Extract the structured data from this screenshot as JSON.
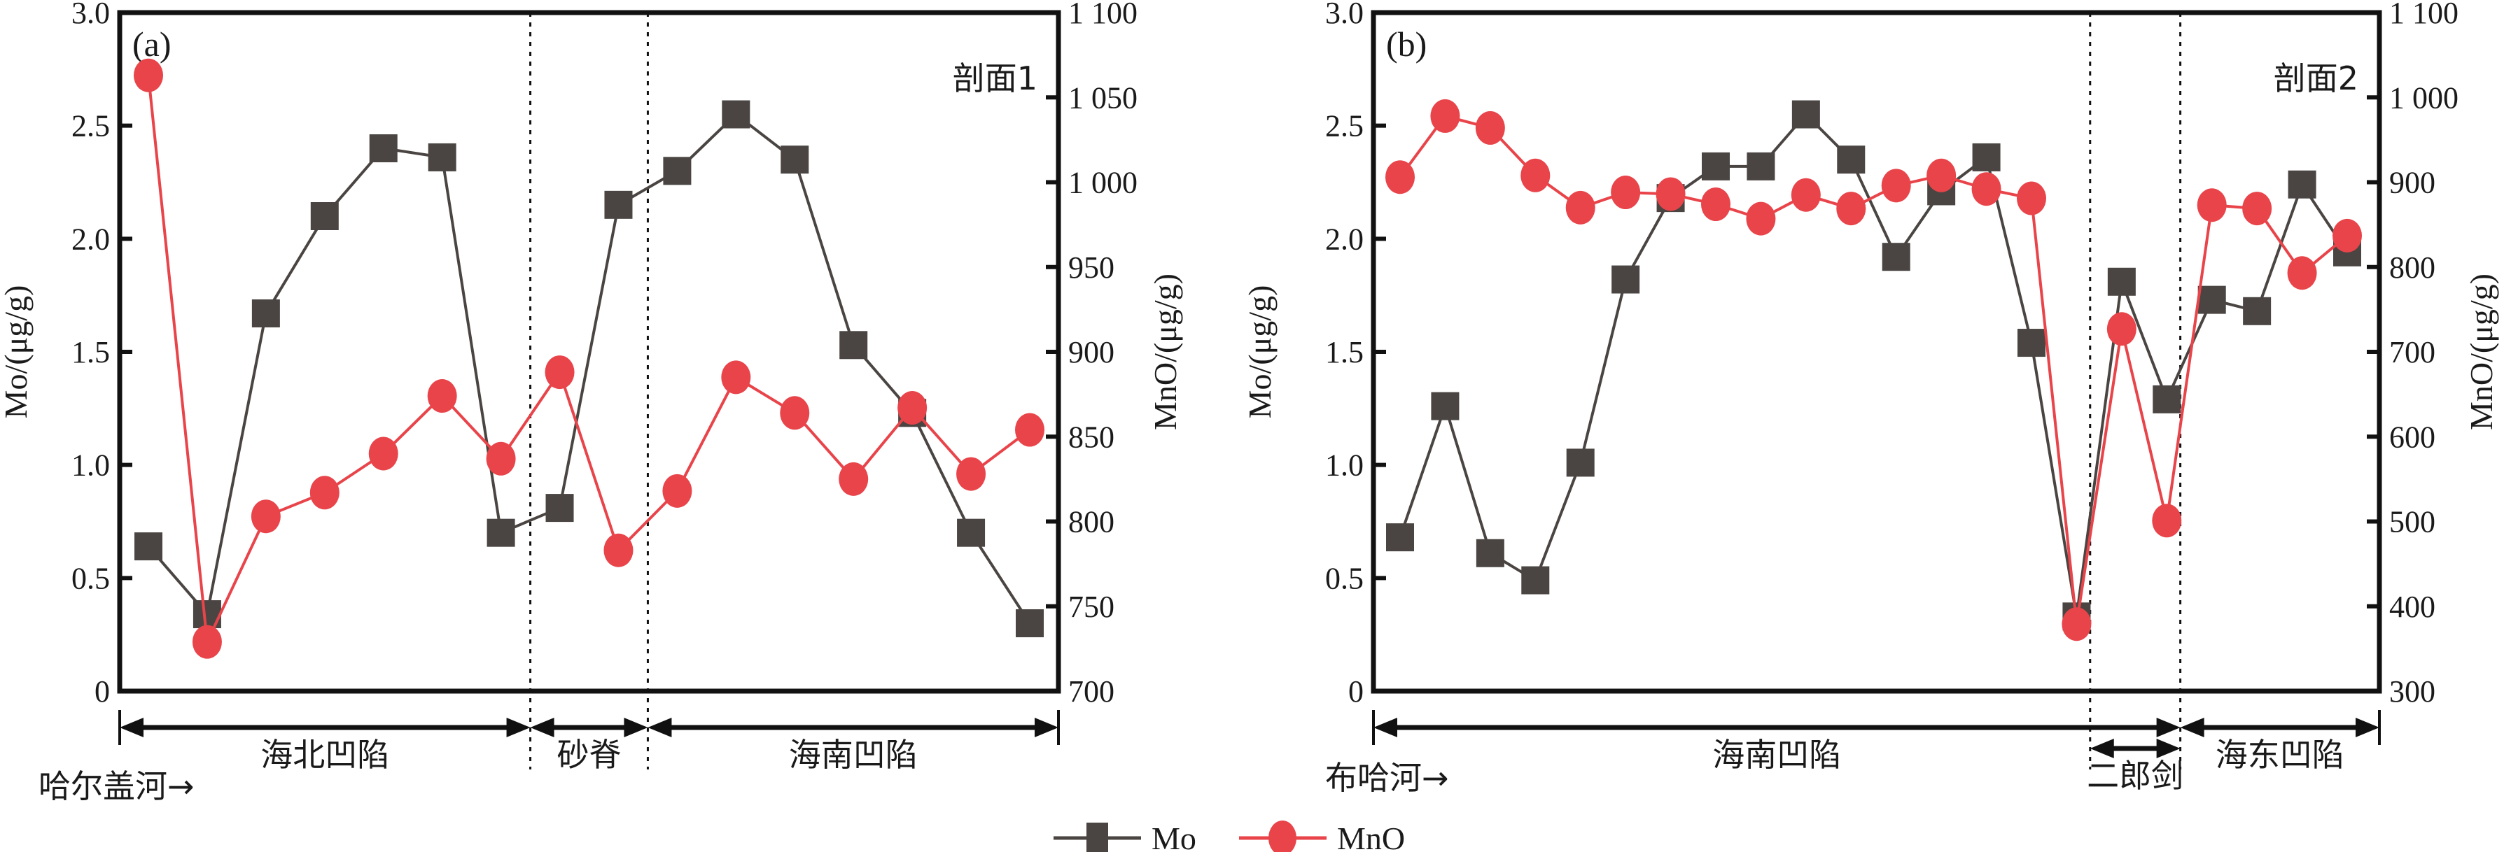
{
  "chart_data": [
    {
      "type": "line",
      "panel_label": "(a)",
      "section_title": "剖面1",
      "ylabel": "Mo/(μg/g)",
      "y2label": "MnO/(μg/g)",
      "ylim": [
        0,
        3.0
      ],
      "y2lim": [
        700,
        1100
      ],
      "yticks": [
        "0",
        "0.5",
        "1.0",
        "1.5",
        "2.0",
        "2.5",
        "3.0"
      ],
      "y2ticks": [
        "700",
        "750",
        "800",
        "850",
        "900",
        "950",
        "1 000",
        "1 050",
        "1 100"
      ],
      "y_tick_values": [
        0,
        0.5,
        1.0,
        1.5,
        2.0,
        2.5,
        3.0
      ],
      "y2_tick_values": [
        700,
        750,
        800,
        850,
        900,
        950,
        1000,
        1050,
        1100
      ],
      "river_label": "哈尔盖河→",
      "zones": [
        {
          "label": "海北凹陷",
          "from": 0,
          "to": 6.5
        },
        {
          "label": "砂脊",
          "from": 6.5,
          "to": 8.5
        },
        {
          "label": "海南凹陷",
          "from": 8.5,
          "to": 16
        }
      ],
      "dividers": [
        6.5,
        8.5
      ],
      "series": [
        {
          "name": "Mo",
          "axis": "left",
          "marker": "square",
          "color": "#4a4542",
          "values": [
            0.64,
            0.34,
            1.67,
            2.1,
            2.4,
            2.36,
            0.7,
            0.81,
            2.15,
            2.3,
            2.55,
            2.35,
            1.53,
            1.23,
            0.7,
            0.3
          ]
        },
        {
          "name": "MnO",
          "axis": "right",
          "marker": "circle",
          "color": "#e8444a",
          "values": [
            1063,
            729,
            803,
            817,
            840,
            874,
            837,
            888,
            783,
            818,
            885,
            864,
            825,
            867,
            828,
            854
          ]
        }
      ]
    },
    {
      "type": "line",
      "panel_label": "(b)",
      "section_title": "剖面2",
      "ylabel": "Mo/(μg/g)",
      "y2label": "MnO/(μg/g)",
      "ylim": [
        0,
        3.0
      ],
      "y2lim": [
        300,
        1100
      ],
      "yticks": [
        "0",
        "0.5",
        "1.0",
        "1.5",
        "2.0",
        "2.5",
        "3.0"
      ],
      "y2ticks": [
        "300",
        "400",
        "500",
        "600",
        "700",
        "800",
        "900",
        "1 000",
        "1 100"
      ],
      "y_tick_values": [
        0,
        0.5,
        1.0,
        1.5,
        2.0,
        2.5,
        3.0
      ],
      "y2_tick_values": [
        300,
        400,
        500,
        600,
        700,
        800,
        900,
        1000,
        1100
      ],
      "river_label": "布哈河→",
      "zones": [
        {
          "label": "海南凹陷",
          "from": 0,
          "to": 17.3
        },
        {
          "label": "二郎剑",
          "from": 15.3,
          "to": 17.3
        },
        {
          "label": "海东凹陷",
          "from": 17.3,
          "to": 22
        }
      ],
      "dividers": [
        15.3,
        17.3
      ],
      "series": [
        {
          "name": "Mo",
          "axis": "left",
          "marker": "square",
          "color": "#4a4542",
          "values": [
            0.68,
            1.26,
            0.61,
            0.49,
            1.01,
            1.82,
            2.18,
            2.32,
            2.32,
            2.55,
            2.35,
            1.92,
            2.21,
            2.36,
            1.54,
            0.33,
            1.81,
            1.29,
            1.73,
            1.68,
            2.24,
            1.94
          ]
        },
        {
          "name": "MnO",
          "axis": "right",
          "marker": "circle",
          "color": "#e8444a",
          "values": [
            906,
            978,
            964,
            908,
            870,
            888,
            886,
            874,
            857,
            885,
            869,
            896,
            908,
            892,
            881,
            379,
            727,
            501,
            873,
            869,
            793,
            837
          ]
        }
      ]
    }
  ],
  "legend": [
    {
      "name": "Mo",
      "marker": "square",
      "color": "#4a4542"
    },
    {
      "name": "MnO",
      "marker": "circle",
      "color": "#e8444a"
    }
  ]
}
